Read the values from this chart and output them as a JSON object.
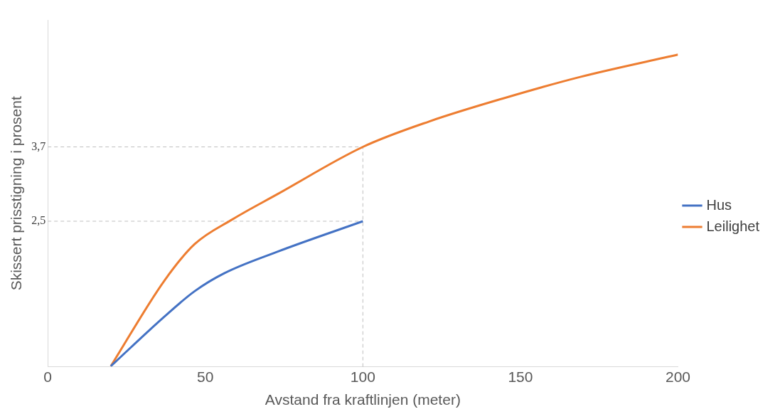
{
  "chart_data": {
    "type": "line",
    "xlabel": "Avstand fra kraftlinjen (meter)",
    "ylabel": "Skissert prisstigning i prosent",
    "xlim": [
      0,
      200
    ],
    "xticks": [
      0,
      50,
      100,
      150,
      200
    ],
    "ylim": [
      0.15,
      5.75
    ],
    "yticks": [
      {
        "value": 2.5,
        "label": "2,5"
      },
      {
        "value": 3.7,
        "label": "3,7"
      }
    ],
    "series": [
      {
        "name": "Hus",
        "color": "#4472c4",
        "x": [
          20,
          37,
          46.6,
          56,
          73,
          100
        ],
        "values": [
          0.16,
          0.96,
          1.37,
          1.66,
          2.01,
          2.5
        ]
      },
      {
        "name": "Leilighet",
        "color": "#ed7d31",
        "x": [
          20,
          37,
          46.6,
          58.6,
          73,
          100,
          121,
          145,
          169,
          200
        ],
        "values": [
          0.16,
          1.54,
          2.13,
          2.53,
          2.94,
          3.7,
          4.11,
          4.49,
          4.83,
          5.19
        ]
      }
    ],
    "ref_lines": [
      {
        "axis": "y",
        "value": 2.5,
        "color": "#bfbfbf",
        "line_style": "dashed"
      },
      {
        "axis": "y",
        "value": 3.7,
        "color": "#bfbfbf",
        "line_style": "dashed"
      },
      {
        "axis": "x",
        "value": 100,
        "color": "#bfbfbf",
        "line_style": "dashed"
      }
    ],
    "legend": "right",
    "grid": false,
    "marker": "none",
    "line_style": "solid"
  }
}
